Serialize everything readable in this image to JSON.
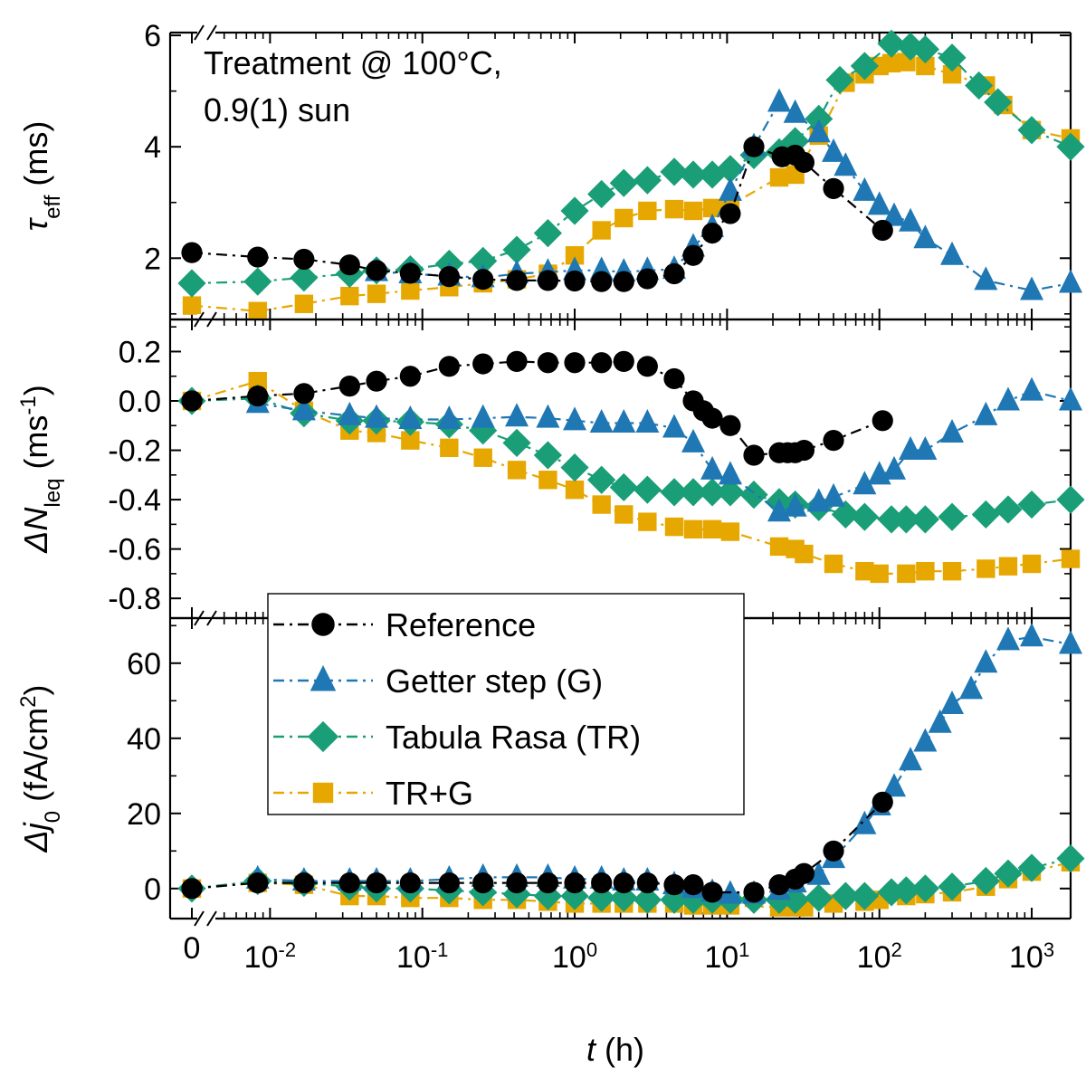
{
  "chart_data": {
    "type": "scatter",
    "annotation": [
      "Treatment @ 100°C,",
      "0.9(1) sun"
    ],
    "xlabel": {
      "var": "t",
      "unit": " (h)"
    },
    "xaxis": {
      "scale": "log-with-break",
      "zero_label": "0",
      "ticks": [
        {
          "value": 0.01,
          "base": "10",
          "exp": "-2"
        },
        {
          "value": 0.1,
          "base": "10",
          "exp": "-1"
        },
        {
          "value": 1,
          "base": "10",
          "exp": "0"
        },
        {
          "value": 10,
          "base": "10",
          "exp": "1"
        },
        {
          "value": 100,
          "base": "10",
          "exp": "2"
        },
        {
          "value": 1000,
          "base": "10",
          "exp": "3"
        }
      ],
      "range": [
        0.0045,
        1800
      ]
    },
    "legend": {
      "position": "lower-left",
      "entries": [
        "Reference",
        "Getter step (G)",
        "Tabula Rasa (TR)",
        "TR+G"
      ]
    },
    "styles": [
      {
        "name": "Reference",
        "color": "#000000",
        "marker": "circle"
      },
      {
        "name": "Getter step (G)",
        "color": "#1f77b4",
        "marker": "triangle"
      },
      {
        "name": "Tabula Rasa (TR)",
        "color": "#1a9e77",
        "marker": "diamond"
      },
      {
        "name": "TR+G",
        "color": "#e6a700",
        "marker": "square"
      }
    ],
    "panels": [
      {
        "id": "tau",
        "ylabel": {
          "sym": "τ",
          "sub": "eff",
          "unit": " (ms)"
        },
        "ylim": [
          0.9,
          6.05
        ],
        "yticks": [
          2,
          4,
          6
        ],
        "series": [
          {
            "name": "Reference",
            "zero": 2.1,
            "x": [
              0.0083,
              0.0167,
              0.0333,
              0.05,
              0.0833,
              0.15,
              0.25,
              0.4167,
              0.6667,
              1.0,
              1.5,
              2.1,
              3.0,
              4.5,
              6.0,
              8.0,
              10.5,
              15.0,
              23.0,
              28.0,
              32.0,
              50.0,
              105.0
            ],
            "y": [
              2.02,
              1.98,
              1.88,
              1.78,
              1.73,
              1.67,
              1.62,
              1.6,
              1.6,
              1.59,
              1.58,
              1.58,
              1.63,
              1.72,
              2.05,
              2.45,
              2.8,
              4.0,
              3.82,
              3.85,
              3.72,
              3.25,
              2.5
            ]
          },
          {
            "name": "Getter step (G)",
            "zero": null,
            "x": [
              0.05,
              0.0833,
              0.15,
              0.25,
              0.4167,
              0.6667,
              1.0,
              1.5,
              2.1,
              3.0,
              4.5,
              6.0,
              8.0,
              10.5,
              15.0,
              22.0,
              28.0,
              40.0,
              50.0,
              60.0,
              80.0,
              100.0,
              125.0,
              160.0,
              200.0,
              300.0,
              500.0,
              1000.0,
              1800.0
            ],
            "y": [
              1.76,
              1.72,
              1.68,
              1.65,
              1.72,
              1.75,
              1.78,
              1.78,
              1.75,
              1.78,
              1.8,
              2.2,
              2.55,
              3.2,
              4.0,
              4.8,
              4.6,
              4.25,
              3.9,
              3.65,
              3.2,
              2.95,
              2.75,
              2.65,
              2.35,
              2.05,
              1.6,
              1.42,
              1.55
            ]
          },
          {
            "name": "Tabula Rasa (TR)",
            "zero": 1.55,
            "x": [
              0.0083,
              0.0167,
              0.0333,
              0.05,
              0.0833,
              0.15,
              0.25,
              0.4167,
              0.6667,
              1.0,
              1.5,
              2.1,
              3.0,
              4.5,
              6.0,
              8.0,
              10.5,
              15.0,
              22.0,
              28.0,
              40.0,
              55.0,
              80.0,
              120.0,
              160.0,
              200.0,
              300.0,
              450.0,
              600.0,
              1000.0,
              1800.0
            ],
            "y": [
              1.58,
              1.65,
              1.72,
              1.78,
              1.8,
              1.9,
              1.95,
              2.15,
              2.45,
              2.85,
              3.15,
              3.35,
              3.4,
              3.55,
              3.5,
              3.5,
              3.6,
              3.85,
              3.9,
              4.1,
              4.5,
              5.2,
              5.45,
              5.85,
              5.8,
              5.75,
              5.6,
              5.1,
              4.8,
              4.3,
              4.0
            ]
          },
          {
            "name": "TR+G",
            "zero": 1.15,
            "x": [
              0.0083,
              0.0167,
              0.0333,
              0.05,
              0.0833,
              0.15,
              0.25,
              0.4167,
              0.6667,
              1.0,
              1.5,
              2.1,
              3.0,
              4.5,
              6.0,
              8.0,
              10.5,
              22.0,
              28.0,
              40.0,
              60.0,
              80.0,
              100.0,
              120.0,
              150.0,
              200.0,
              300.0,
              500.0,
              650.0,
              1000.0,
              1800.0
            ],
            "y": [
              1.05,
              1.18,
              1.32,
              1.36,
              1.42,
              1.48,
              1.55,
              1.62,
              1.72,
              2.05,
              2.5,
              2.72,
              2.85,
              2.88,
              2.85,
              2.9,
              2.95,
              3.45,
              3.5,
              4.2,
              5.15,
              5.3,
              5.45,
              5.5,
              5.52,
              5.45,
              5.3,
              5.1,
              4.75,
              4.3,
              4.15
            ]
          }
        ]
      },
      {
        "id": "dn",
        "ylabel": {
          "sym": "ΔN",
          "sub": "leq",
          "unit": " (ms",
          "unitsup": "-1",
          "unitend": ")"
        },
        "ylim": [
          -0.88,
          0.33
        ],
        "yticks": [
          0.2,
          0.0,
          -0.2,
          -0.4,
          -0.6,
          -0.8
        ],
        "ytick_labels": [
          "0.2",
          "0.0",
          "-0.2",
          "-0.4",
          "-0.6",
          "-0.8"
        ],
        "series": [
          {
            "name": "Reference",
            "zero": 0.0,
            "x": [
              0.0083,
              0.0167,
              0.0333,
              0.05,
              0.0833,
              0.15,
              0.25,
              0.4167,
              0.6667,
              1.0,
              1.5,
              2.1,
              3.0,
              4.5,
              6.0,
              7.0,
              8.0,
              10.5,
              15.0,
              22.0,
              25.0,
              28.0,
              32.0,
              50.0,
              105.0
            ],
            "y": [
              0.02,
              0.03,
              0.06,
              0.08,
              0.1,
              0.14,
              0.15,
              0.16,
              0.155,
              0.155,
              0.155,
              0.16,
              0.14,
              0.09,
              0.0,
              -0.04,
              -0.07,
              -0.1,
              -0.22,
              -0.21,
              -0.21,
              -0.21,
              -0.2,
              -0.16,
              -0.08
            ]
          },
          {
            "name": "Getter step (G)",
            "zero": null,
            "x": [
              0.0083,
              0.0167,
              0.0333,
              0.05,
              0.0833,
              0.15,
              0.25,
              0.4167,
              0.6667,
              1.0,
              1.5,
              2.1,
              3.0,
              4.5,
              6.0,
              8.0,
              10.5,
              22.0,
              28.0,
              40.0,
              50.0,
              80.0,
              100.0,
              125.0,
              160.0,
              200.0,
              300.0,
              500.0,
              700.0,
              1000.0,
              1800.0
            ],
            "y": [
              -0.01,
              -0.04,
              -0.06,
              -0.07,
              -0.075,
              -0.075,
              -0.07,
              -0.065,
              -0.07,
              -0.08,
              -0.09,
              -0.09,
              -0.09,
              -0.11,
              -0.17,
              -0.28,
              -0.3,
              -0.45,
              -0.43,
              -0.41,
              -0.39,
              -0.34,
              -0.3,
              -0.28,
              -0.2,
              -0.2,
              -0.13,
              -0.06,
              0.0,
              0.04,
              0.0
            ]
          },
          {
            "name": "Tabula Rasa (TR)",
            "zero": 0.0,
            "x": [
              0.0083,
              0.0167,
              0.0333,
              0.05,
              0.0833,
              0.15,
              0.25,
              0.4167,
              0.6667,
              1.0,
              1.5,
              2.1,
              3.0,
              4.5,
              6.0,
              8.0,
              10.5,
              15.0,
              22.0,
              28.0,
              40.0,
              60.0,
              80.0,
              120.0,
              150.0,
              200.0,
              300.0,
              500.0,
              700.0,
              1000.0,
              1800.0
            ],
            "y": [
              0.01,
              -0.05,
              -0.08,
              -0.08,
              -0.085,
              -0.095,
              -0.12,
              -0.17,
              -0.22,
              -0.27,
              -0.32,
              -0.35,
              -0.36,
              -0.37,
              -0.37,
              -0.37,
              -0.37,
              -0.38,
              -0.41,
              -0.42,
              -0.43,
              -0.46,
              -0.47,
              -0.48,
              -0.48,
              -0.48,
              -0.47,
              -0.46,
              -0.44,
              -0.42,
              -0.4
            ]
          },
          {
            "name": "TR+G",
            "zero": 0.0,
            "x": [
              0.0083,
              0.0167,
              0.0333,
              0.05,
              0.0833,
              0.15,
              0.25,
              0.4167,
              0.6667,
              1.0,
              1.5,
              2.1,
              3.0,
              4.5,
              6.0,
              8.0,
              10.5,
              22.0,
              28.0,
              32.0,
              50.0,
              80.0,
              100.0,
              150.0,
              200.0,
              300.0,
              500.0,
              700.0,
              1000.0,
              1800.0
            ],
            "y": [
              0.08,
              -0.04,
              -0.12,
              -0.13,
              -0.16,
              -0.19,
              -0.23,
              -0.28,
              -0.32,
              -0.36,
              -0.42,
              -0.46,
              -0.49,
              -0.51,
              -0.52,
              -0.52,
              -0.53,
              -0.59,
              -0.6,
              -0.62,
              -0.66,
              -0.69,
              -0.7,
              -0.7,
              -0.69,
              -0.69,
              -0.68,
              -0.67,
              -0.66,
              -0.64
            ]
          }
        ]
      },
      {
        "id": "j0",
        "ylabel": {
          "sym": "Δj",
          "sub": "0",
          "unit": " (fA/cm",
          "unitsup": "2",
          "unitend": ")"
        },
        "ylim": [
          -8,
          72
        ],
        "yticks": [
          0,
          20,
          40,
          60
        ],
        "series": [
          {
            "name": "Reference",
            "zero": 0.0,
            "x": [
              0.0083,
              0.0167,
              0.0333,
              0.05,
              0.0833,
              0.15,
              0.25,
              0.4167,
              0.6667,
              1.0,
              1.5,
              2.1,
              3.0,
              4.5,
              6.0,
              8.0,
              15.0,
              22.0,
              28.0,
              32.0,
              50.0,
              105.0
            ],
            "y": [
              1.5,
              1.5,
              1.5,
              1.5,
              1.5,
              1.5,
              1.5,
              1.5,
              1.5,
              1.5,
              1.5,
              1.5,
              1.5,
              1.0,
              1.0,
              -1.0,
              -1.0,
              1.0,
              2.5,
              4.0,
              10.0,
              23.0
            ]
          },
          {
            "name": "Getter step (G)",
            "zero": null,
            "x": [
              0.0083,
              0.0167,
              0.0333,
              0.05,
              0.0833,
              0.15,
              0.25,
              0.4167,
              0.6667,
              1.0,
              1.5,
              2.1,
              3.0,
              4.5,
              6.0,
              8.0,
              10.5,
              15.0,
              22.0,
              28.0,
              40.0,
              50.0,
              80.0,
              100.0,
              125.0,
              160.0,
              200.0,
              250.0,
              300.0,
              400.0,
              500.0,
              700.0,
              1000.0,
              1800.0
            ],
            "y": [
              2.5,
              2.0,
              2.0,
              2.0,
              2.0,
              2.5,
              3.0,
              3.0,
              3.0,
              2.5,
              2.5,
              2.0,
              2.0,
              1.0,
              0.0,
              -1.0,
              -1.5,
              -1.5,
              -0.5,
              1.5,
              3.5,
              8.0,
              17.0,
              22.0,
              27.0,
              34.0,
              39.0,
              44.0,
              49.0,
              53.0,
              60.0,
              66.0,
              67.0,
              65.0
            ]
          },
          {
            "name": "Tabula Rasa (TR)",
            "zero": 0.0,
            "x": [
              0.0083,
              0.0167,
              0.0333,
              0.05,
              0.0833,
              0.15,
              0.25,
              0.4167,
              0.6667,
              1.0,
              1.5,
              2.1,
              3.0,
              4.5,
              6.0,
              8.0,
              10.5,
              15.0,
              22.0,
              28.0,
              40.0,
              60.0,
              80.0,
              120.0,
              150.0,
              200.0,
              300.0,
              500.0,
              700.0,
              1000.0,
              1800.0
            ],
            "y": [
              2.0,
              1.5,
              0.5,
              0.0,
              0.0,
              -0.5,
              -1.0,
              -1.5,
              -2.0,
              -2.0,
              -2.5,
              -2.5,
              -3.0,
              -3.0,
              -3.0,
              -3.0,
              -3.0,
              -3.0,
              -3.0,
              -3.0,
              -2.5,
              -2.0,
              -2.0,
              -1.0,
              -0.5,
              0.0,
              0.5,
              2.0,
              4.0,
              5.5,
              8.0
            ]
          },
          {
            "name": "TR+G",
            "zero": 0.0,
            "x": [
              0.0083,
              0.0167,
              0.0333,
              0.05,
              0.0833,
              0.15,
              0.25,
              0.4167,
              0.6667,
              1.0,
              1.5,
              2.1,
              3.0,
              4.5,
              6.0,
              8.0,
              10.5,
              22.0,
              28.0,
              32.0,
              50.0,
              80.0,
              100.0,
              150.0,
              200.0,
              300.0,
              500.0,
              700.0,
              1000.0,
              1800.0
            ],
            "y": [
              1.5,
              1.0,
              -2.0,
              -2.0,
              -2.5,
              -2.5,
              -3.0,
              -3.0,
              -3.5,
              -4.0,
              -4.0,
              -4.0,
              -4.0,
              -4.0,
              -4.5,
              -4.5,
              -4.5,
              -5.0,
              -5.0,
              -5.0,
              -4.0,
              -3.5,
              -3.0,
              -2.0,
              -1.5,
              -1.0,
              0.5,
              2.5,
              4.5,
              7.0
            ]
          }
        ]
      }
    ]
  }
}
